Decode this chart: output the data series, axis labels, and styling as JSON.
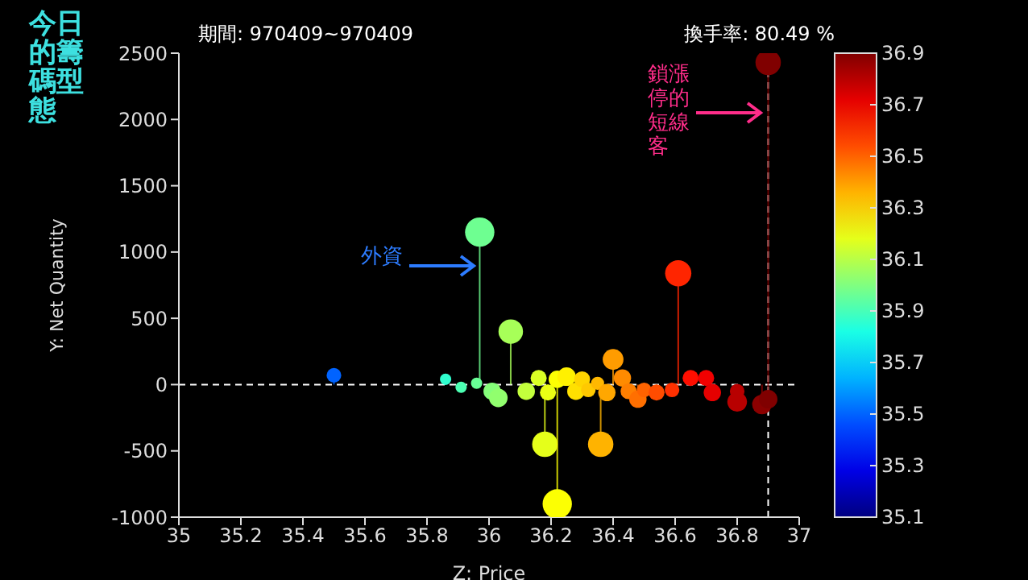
{
  "chart_data": {
    "type": "lollipop",
    "title": "今日的籌碼型態",
    "subtitle": "期間: 970409~970409",
    "xlabel": "Z: Price",
    "ylabel": "Y: Net Quantity",
    "clabel": null,
    "annotations": [
      "外資",
      "鎖漲停的短線客",
      "換手率: 80.49 %"
    ],
    "x": [
      35.5,
      35.97,
      36.07,
      36.61,
      36.9,
      36.18,
      36.22,
      36.36,
      36.4,
      35.86,
      35.91,
      35.96,
      36.01,
      36.03,
      36.12,
      36.16,
      36.19,
      36.22,
      36.25,
      36.28,
      36.3,
      36.32,
      36.35,
      36.38,
      36.43,
      36.45,
      36.48,
      36.5,
      36.54,
      36.59,
      36.65,
      36.7,
      36.72,
      36.8,
      36.8,
      36.88,
      36.9
    ],
    "values": [
      70,
      1150,
      400,
      840,
      2430,
      -450,
      -900,
      -450,
      190,
      40,
      -20,
      10,
      -50,
      -100,
      -50,
      50,
      -60,
      40,
      60,
      -50,
      40,
      -40,
      10,
      -60,
      50,
      -50,
      -110,
      -40,
      -60,
      -40,
      50,
      50,
      -60,
      -50,
      -130,
      -150,
      -110
    ],
    "sizes": [
      0.25,
      1,
      0.7,
      0.8,
      0.75,
      0.75,
      1,
      0.75,
      0.5,
      0.15,
      0.15,
      0.15,
      0.35,
      0.4,
      0.35,
      0.3,
      0.3,
      0.35,
      0.4,
      0.35,
      0.3,
      0.25,
      0.2,
      0.35,
      0.35,
      0.3,
      0.35,
      0.25,
      0.3,
      0.25,
      0.3,
      0.3,
      0.35,
      0.25,
      0.45,
      0.45,
      0.4
    ],
    "cvalues": [
      35.5,
      35.97,
      36.07,
      36.61,
      36.9,
      36.18,
      36.22,
      36.36,
      36.4,
      35.86,
      35.91,
      35.96,
      36.01,
      36.03,
      36.12,
      36.16,
      36.19,
      36.22,
      36.25,
      36.28,
      36.3,
      36.32,
      36.35,
      36.38,
      36.43,
      36.45,
      36.48,
      36.5,
      36.54,
      36.59,
      36.65,
      36.7,
      36.72,
      36.8,
      36.8,
      36.88,
      36.9
    ],
    "clim": [
      35.1,
      36.9
    ],
    "cticks": [
      35.1,
      35.3,
      35.5,
      35.7,
      35.9,
      36.1,
      36.3,
      36.5,
      36.7,
      36.9
    ],
    "xlim": [
      35,
      37
    ],
    "xticks": [
      35,
      35.2,
      35.4,
      35.6,
      35.8,
      36,
      36.2,
      36.4,
      36.6,
      36.8,
      37
    ],
    "ylim": [
      -1000,
      2500
    ],
    "yticks": [
      -1000,
      -500,
      0,
      500,
      1000,
      1500,
      2000,
      2500
    ],
    "ref_lines": [
      {
        "axis": "y",
        "value": 0,
        "line_style": "dashed",
        "color": "#ffffff"
      },
      {
        "axis": "x",
        "value": 36.9,
        "line_style": "dashed",
        "color": "#ffffff"
      }
    ]
  }
}
